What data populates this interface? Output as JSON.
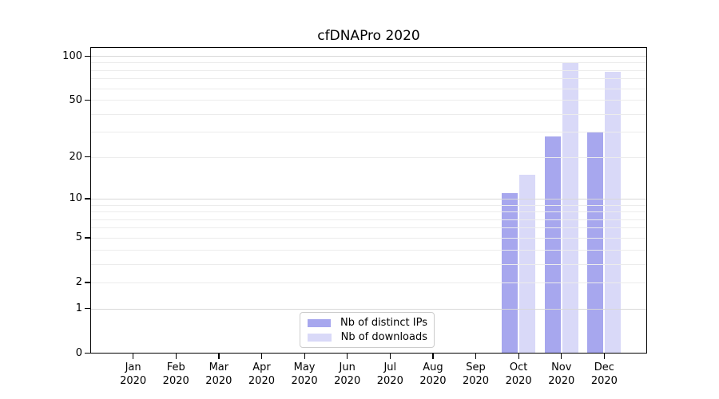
{
  "chart_data": {
    "type": "bar",
    "title": "cfDNAPro 2020",
    "categories": [
      "Jan",
      "Feb",
      "Mar",
      "Apr",
      "May",
      "Jun",
      "Jul",
      "Aug",
      "Sep",
      "Oct",
      "Nov",
      "Dec"
    ],
    "category_sublabel": "2020",
    "series": [
      {
        "name": "Nb of distinct IPs",
        "color": "#a7a7ee",
        "values": [
          0,
          0,
          0,
          0,
          0,
          0,
          0,
          0,
          0,
          11,
          28,
          30
        ]
      },
      {
        "name": "Nb of downloads",
        "color": "#d9d9f8",
        "values": [
          0,
          0,
          0,
          0,
          0,
          0,
          0,
          0,
          0,
          15,
          91,
          78
        ]
      }
    ],
    "y_scale": "log1p",
    "ylim": [
      0,
      112
    ],
    "y_ticks": [
      0,
      1,
      2,
      5,
      10,
      20,
      50,
      100
    ],
    "y_major_gridlines": [
      1,
      10,
      100
    ],
    "y_minor_gridlines": [
      2,
      3,
      4,
      5,
      6,
      7,
      8,
      9,
      20,
      30,
      40,
      50,
      60,
      70,
      80,
      90
    ],
    "grid": true,
    "grid_on_top_of_bars": true,
    "legend_position": "lower center",
    "colors": {
      "major_gridline": "#d8d8d8",
      "minor_gridline": "#ececec",
      "spine": "#000000",
      "text": "#000000",
      "legend_border": "#cccccc",
      "background": "#ffffff"
    }
  }
}
